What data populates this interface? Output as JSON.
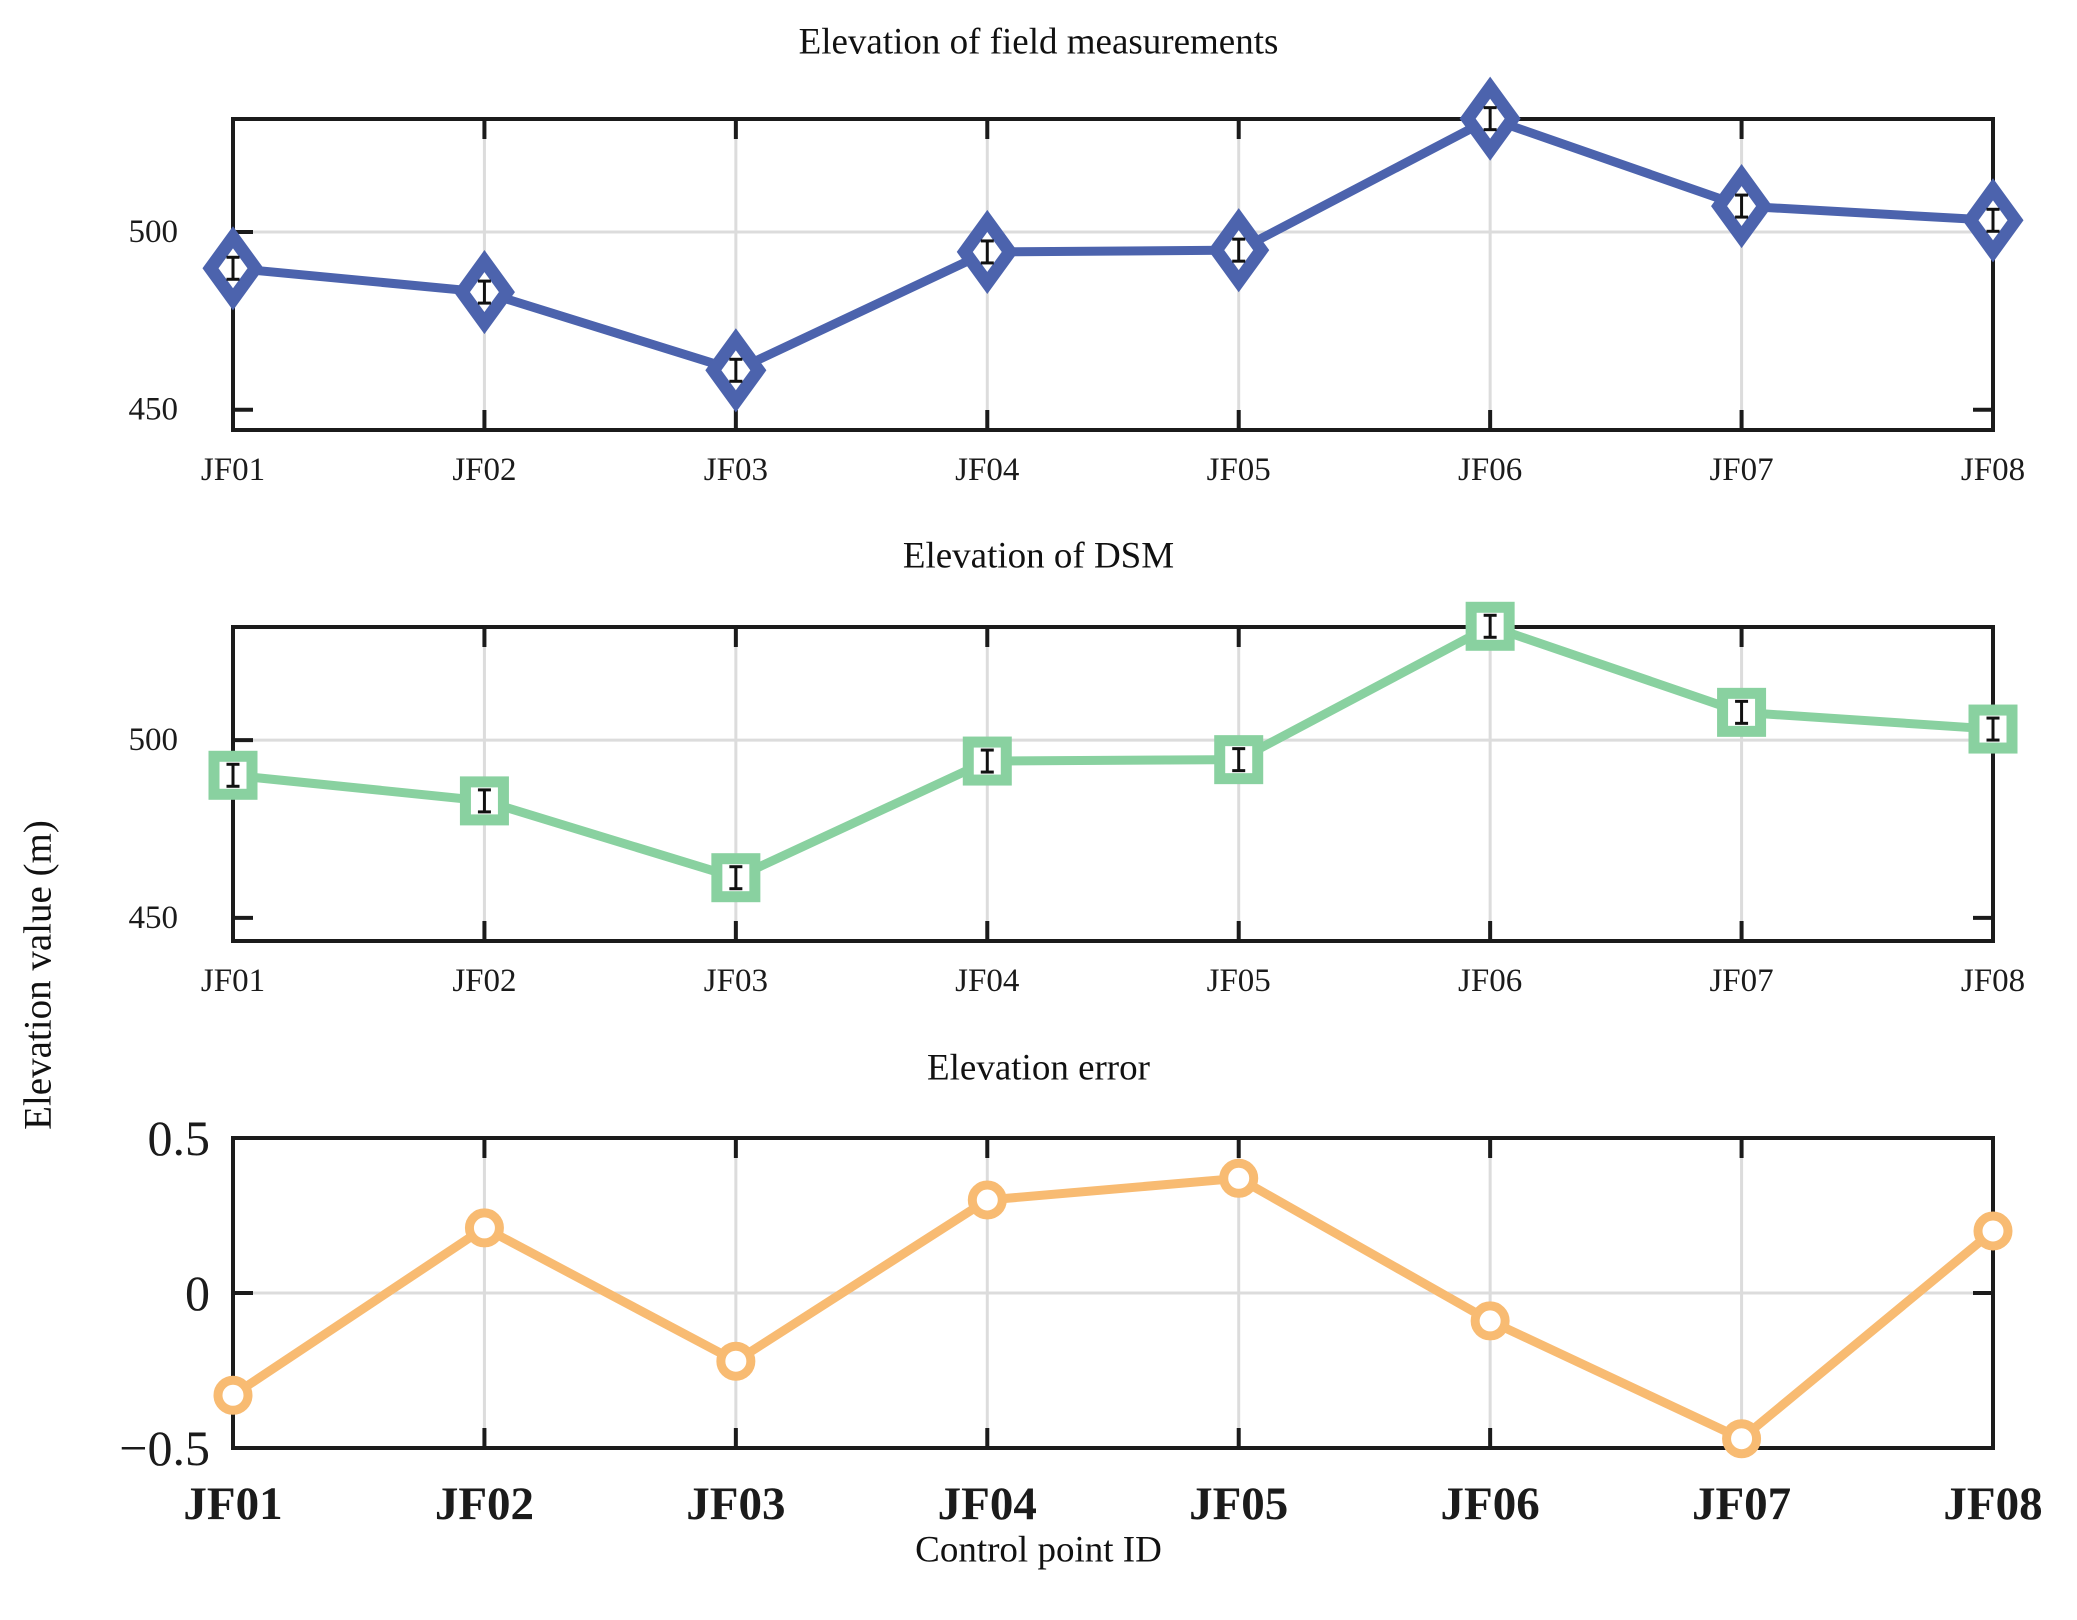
{
  "figure": {
    "ylabel": "Elevation value (m)",
    "xlabel": "Control point ID",
    "background_color": "#ffffff",
    "axis_color": "#1b1b1b",
    "grid_color": "#dcdcdc",
    "errorbar_color": "#111111"
  },
  "chart_data": [
    {
      "type": "line",
      "title": "Elevation of field measurements",
      "categories": [
        "JF01",
        "JF02",
        "JF03",
        "JF04",
        "JF05",
        "JF06",
        "JF07",
        "JF08"
      ],
      "values": [
        489.8,
        483.1,
        461.1,
        494.4,
        494.9,
        531.9,
        507.3,
        503.3
      ],
      "marker": "diamond",
      "color": "#4c63ad",
      "yticks": [
        450,
        500
      ],
      "ytick_labels": [
        "450",
        "500"
      ],
      "ylim": [
        444.3,
        531.8
      ],
      "grid_vertical": true,
      "grid_horizontal_at": [
        500
      ],
      "error_bars": true,
      "x_tick_labels_bold": false
    },
    {
      "type": "line",
      "title": "Elevation of DSM",
      "categories": [
        "JF01",
        "JF02",
        "JF03",
        "JF04",
        "JF05",
        "JF06",
        "JF07",
        "JF08"
      ],
      "values": [
        490.1,
        482.9,
        461.3,
        494.1,
        494.5,
        532.0,
        507.8,
        503.1
      ],
      "marker": "square",
      "color": "#89d1a0",
      "yticks": [
        450,
        500
      ],
      "ytick_labels": [
        "450",
        "500"
      ],
      "ylim": [
        443.5,
        531.8
      ],
      "grid_vertical": true,
      "grid_horizontal_at": [
        500
      ],
      "error_bars": true,
      "x_tick_labels_bold": false
    },
    {
      "type": "line",
      "title": "Elevation error",
      "categories": [
        "JF01",
        "JF02",
        "JF03",
        "JF04",
        "JF05",
        "JF06",
        "JF07",
        "JF08"
      ],
      "values": [
        -0.33,
        0.21,
        -0.22,
        0.3,
        0.37,
        -0.09,
        -0.47,
        0.2
      ],
      "marker": "circle",
      "color": "#f8bb72",
      "yticks": [
        -0.5,
        0,
        0.5
      ],
      "ytick_labels": [
        "−0.5",
        "0",
        "0.5"
      ],
      "ylim": [
        -0.5,
        0.5
      ],
      "grid_vertical": true,
      "grid_horizontal_at": [
        0
      ],
      "error_bars": false,
      "x_tick_labels_bold": true
    }
  ]
}
